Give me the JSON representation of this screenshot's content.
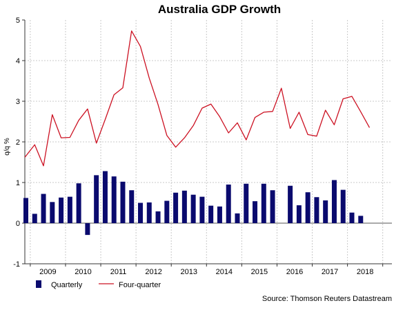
{
  "chart_data": {
    "type": "bar",
    "title": "Australia GDP  Growth",
    "ylabel": "q/q %",
    "xlabel": "",
    "ylim": [
      -1,
      5
    ],
    "yticks": [
      "-1",
      "0",
      "1",
      "2",
      "3",
      "4",
      "5"
    ],
    "year_labels": [
      "2009",
      "2010",
      "2011",
      "2012",
      "2013",
      "2014",
      "2015",
      "2016",
      "2017",
      "2018"
    ],
    "quarters": [
      "2008Q4",
      "2009Q1",
      "2009Q2",
      "2009Q3",
      "2009Q4",
      "2010Q1",
      "2010Q2",
      "2010Q3",
      "2010Q4",
      "2011Q1",
      "2011Q2",
      "2011Q3",
      "2011Q4",
      "2012Q1",
      "2012Q2",
      "2012Q3",
      "2012Q4",
      "2013Q1",
      "2013Q2",
      "2013Q3",
      "2013Q4",
      "2014Q1",
      "2014Q2",
      "2014Q3",
      "2014Q4",
      "2015Q1",
      "2015Q2",
      "2015Q3",
      "2015Q4",
      "2016Q1",
      "2016Q2",
      "2016Q3",
      "2016Q4",
      "2017Q1",
      "2017Q2",
      "2017Q3",
      "2017Q4",
      "2018Q1",
      "2018Q2",
      "2018Q3",
      "2018Q4"
    ],
    "grid": true,
    "legend_position": "bottom-left",
    "series": [
      {
        "name": "Quarterly",
        "type": "bar",
        "color": "#0a0a6e",
        "values": [
          0.62,
          0.23,
          0.72,
          0.52,
          0.63,
          0.65,
          0.98,
          -0.29,
          1.18,
          1.28,
          1.15,
          1.02,
          0.81,
          0.5,
          0.51,
          0.29,
          0.55,
          0.75,
          0.8,
          0.7,
          0.65,
          0.43,
          0.41,
          0.95,
          0.24,
          0.97,
          0.54,
          0.97,
          0.81,
          null,
          0.92,
          0.44,
          0.76,
          0.64,
          0.56,
          1.06,
          0.82,
          0.26,
          0.18,
          null,
          null
        ]
      },
      {
        "name": "Four-quarter",
        "type": "line",
        "color": "#cc1122",
        "values": [
          1.62,
          1.93,
          1.41,
          2.67,
          2.1,
          2.11,
          2.53,
          2.81,
          1.97,
          2.55,
          3.16,
          3.33,
          4.73,
          4.35,
          3.57,
          2.92,
          2.16,
          1.87,
          2.1,
          2.4,
          2.83,
          2.93,
          2.62,
          2.22,
          2.47,
          2.05,
          2.6,
          2.73,
          2.75,
          3.32,
          2.33,
          2.73,
          2.18,
          2.14,
          2.78,
          2.42,
          3.06,
          3.12,
          2.74,
          2.35,
          null
        ]
      }
    ]
  },
  "legend": {
    "quarterly_label": "Quarterly",
    "fourquarter_label": "Four-quarter"
  },
  "source": "Source: Thomson Reuters Datastream"
}
